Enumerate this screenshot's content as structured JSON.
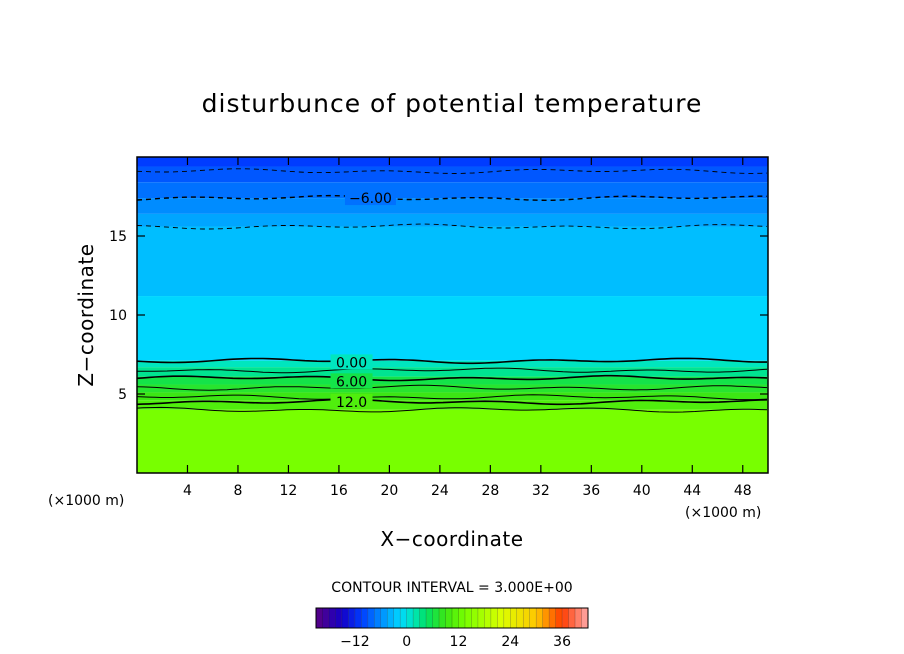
{
  "chart_data": {
    "type": "heatmap",
    "title": "disturbunce of potential temperature",
    "xlabel": "X−coordinate",
    "ylabel": "Z−coordinate",
    "x_unit": "(×1000 m)",
    "y_unit": "(×1000 m)",
    "xlim": [
      0,
      50
    ],
    "ylim": [
      0,
      20
    ],
    "x_ticks": [
      4,
      8,
      12,
      16,
      20,
      24,
      28,
      32,
      36,
      40,
      44,
      48
    ],
    "y_ticks": [
      5,
      10,
      15
    ],
    "contour_interval_text": "CONTOUR INTERVAL = 3.000E+00",
    "contour_labels": [
      {
        "text": "−6.00",
        "x": 18.5,
        "z": 17.4
      },
      {
        "text": "0.00",
        "x": 17.0,
        "z": 7.0
      },
      {
        "text": "6.00",
        "x": 17.0,
        "z": 5.8
      },
      {
        "text": "12.0",
        "x": 17.0,
        "z": 4.5
      }
    ],
    "colorbar": {
      "min": -21,
      "max": 42,
      "step": 1.5,
      "tick_labels": [
        {
          "text": "−12",
          "value": -12
        },
        {
          "text": "0",
          "value": 0
        },
        {
          "text": "12",
          "value": 12
        },
        {
          "text": "24",
          "value": 24
        },
        {
          "text": "36",
          "value": 36
        }
      ]
    },
    "layers": [
      {
        "z_top": 20.0,
        "z_bottom": 19.4,
        "value": -10.5
      },
      {
        "z_top": 19.4,
        "z_bottom": 18.4,
        "value": -9.0
      },
      {
        "z_top": 18.4,
        "z_bottom": 17.4,
        "value": -7.5
      },
      {
        "z_top": 17.4,
        "z_bottom": 16.4,
        "value": -6.0
      },
      {
        "z_top": 16.4,
        "z_bottom": 15.6,
        "value": -4.5
      },
      {
        "z_top": 15.6,
        "z_bottom": 11.2,
        "value": -3.0
      },
      {
        "z_top": 11.2,
        "z_bottom": 7.1,
        "value": -1.5
      },
      {
        "z_top": 7.1,
        "z_bottom": 6.7,
        "value": 1.5
      },
      {
        "z_top": 6.7,
        "z_bottom": 6.1,
        "value": 3.0
      },
      {
        "z_top": 6.1,
        "z_bottom": 5.6,
        "value": 6.0
      },
      {
        "z_top": 5.6,
        "z_bottom": 5.1,
        "value": 7.5
      },
      {
        "z_top": 5.1,
        "z_bottom": 4.6,
        "value": 9.0
      },
      {
        "z_top": 4.6,
        "z_bottom": 4.0,
        "value": 10.5
      },
      {
        "z_top": 4.0,
        "z_bottom": 0.0,
        "value": 13.5
      }
    ],
    "solid_contours_z": [
      7.1,
      6.5,
      6.0,
      5.4,
      4.8,
      4.5,
      4.0
    ],
    "dashed_contours_z": [
      19.1,
      17.4,
      15.6
    ]
  }
}
